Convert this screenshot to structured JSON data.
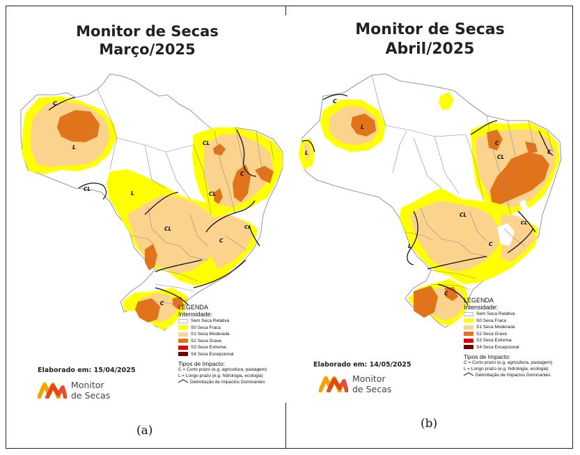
{
  "panel_a": {
    "title_line1": "Monitor de Secas",
    "title_line2": "Março/2025",
    "elaborado": "Elaborado em: 15/04/2025",
    "caption": "(a)",
    "labels": {
      "c1": "C",
      "l1": "L",
      "cl1": "CL",
      "l2": "L",
      "cl2": "CL",
      "cl3": "CL",
      "c2": "C",
      "cl4": "CL",
      "c3": "C",
      "cl5": "CL",
      "c4": "C"
    }
  },
  "panel_b": {
    "title_line1": "Monitor de Secas",
    "title_line2": "Abril/2025",
    "elaborado": "Elaborado em: 14/05/2025",
    "caption": "(b)",
    "labels": {
      "c1": "C",
      "l1": "L",
      "l2": "L",
      "c2": "C",
      "cl1": "CL",
      "c3": "C",
      "cl2": "CL",
      "l3": "L",
      "cl3": "CL",
      "c4": "C",
      "c5": "C"
    }
  },
  "legend": {
    "title": "LEGENDA",
    "intensity_label": "Intensidade:",
    "items": [
      {
        "label": "Sem Seca Relativa",
        "color": "#ffffff"
      },
      {
        "label": "S0 Seca Fraca",
        "color": "#ffff00"
      },
      {
        "label": "S1 Seca Moderada",
        "color": "#fcd38c"
      },
      {
        "label": "S2 Seca Grave",
        "color": "#e1731b"
      },
      {
        "label": "S3 Seca Extrema",
        "color": "#e00000"
      },
      {
        "label": "S4 Seca Excepcional",
        "color": "#730000"
      }
    ],
    "impact_title": "Tipos de Impacto:",
    "impact_c": "C = Curto prazo (e.g. agricultura, pastagem)",
    "impact_l": "L = Longo prazo (e.g. hidrologia, ecologia)",
    "impact_line": "Delimitação de Impactos Dominantes"
  },
  "logo": {
    "line1": "Monitor",
    "line2": "de Secas"
  },
  "colors": {
    "s0": "#ffff00",
    "s1": "#fcd38c",
    "s2": "#e1731b",
    "border": "#7a7a7a",
    "line": "#111111"
  }
}
